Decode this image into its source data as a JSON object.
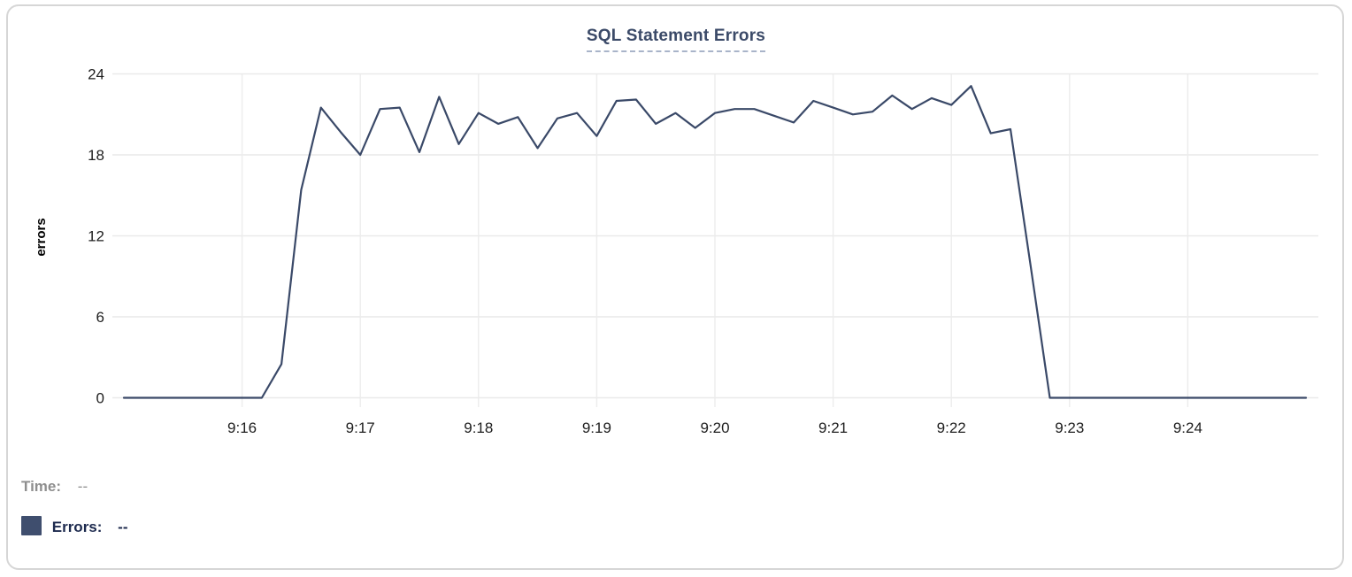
{
  "legend": {
    "time_label": "Time:",
    "time_value": "--",
    "errors_label": "Errors:",
    "errors_value": "--",
    "swatch_color": "#3f4e6e"
  },
  "colors": {
    "line": "#3a4968",
    "title": "#3b4a68",
    "title_underline": "#a9b4c9",
    "gridline": "#e9e9e9",
    "tick_text": "#1e1e1e",
    "time_text": "#8e8e8e",
    "errors_text": "#1d2a4e"
  },
  "chart_data": {
    "type": "line",
    "title": "SQL Statement Errors",
    "xlabel": "",
    "ylabel": "errors",
    "ylim": [
      0,
      24
    ],
    "y_ticks": [
      0,
      6,
      12,
      18,
      24
    ],
    "x_tick_labels": [
      "9:16",
      "9:17",
      "9:18",
      "9:19",
      "9:20",
      "9:21",
      "9:22",
      "9:23",
      "9:24"
    ],
    "grid": true,
    "legend_position": "bottom-left",
    "x": [
      "9:15:00",
      "9:15:10",
      "9:15:20",
      "9:15:30",
      "9:15:40",
      "9:15:50",
      "9:16:00",
      "9:16:10",
      "9:16:20",
      "9:16:30",
      "9:16:40",
      "9:16:50",
      "9:17:00",
      "9:17:10",
      "9:17:20",
      "9:17:30",
      "9:17:40",
      "9:17:50",
      "9:18:00",
      "9:18:10",
      "9:18:20",
      "9:18:30",
      "9:18:40",
      "9:18:50",
      "9:19:00",
      "9:19:10",
      "9:19:20",
      "9:19:30",
      "9:19:40",
      "9:19:50",
      "9:20:00",
      "9:20:10",
      "9:20:20",
      "9:20:30",
      "9:20:40",
      "9:20:50",
      "9:21:00",
      "9:21:10",
      "9:21:20",
      "9:21:30",
      "9:21:40",
      "9:21:50",
      "9:22:00",
      "9:22:10",
      "9:22:20",
      "9:22:30",
      "9:22:40",
      "9:22:50",
      "9:23:00",
      "9:23:10",
      "9:23:20",
      "9:23:30",
      "9:23:40",
      "9:23:50",
      "9:24:00",
      "9:24:10",
      "9:24:20",
      "9:24:30",
      "9:24:40",
      "9:24:50",
      "9:25:00"
    ],
    "series": [
      {
        "name": "Errors",
        "color": "#3a4968",
        "values": [
          0,
          0,
          0,
          0,
          0,
          0,
          0,
          0,
          2.5,
          15.4,
          21.5,
          19.7,
          18,
          21.4,
          21.5,
          18.2,
          22.3,
          18.8,
          21.1,
          20.3,
          20.8,
          18.5,
          20.7,
          21.1,
          19.4,
          22,
          22.1,
          20.3,
          21.1,
          20,
          21.1,
          21.4,
          21.4,
          20.9,
          20.4,
          22,
          21.5,
          21,
          21.2,
          22.4,
          21.4,
          22.2,
          21.7,
          23.1,
          19.6,
          19.9,
          10,
          0,
          0,
          0,
          0,
          0,
          0,
          0,
          0,
          0,
          0,
          0,
          0,
          0,
          0
        ]
      }
    ]
  }
}
